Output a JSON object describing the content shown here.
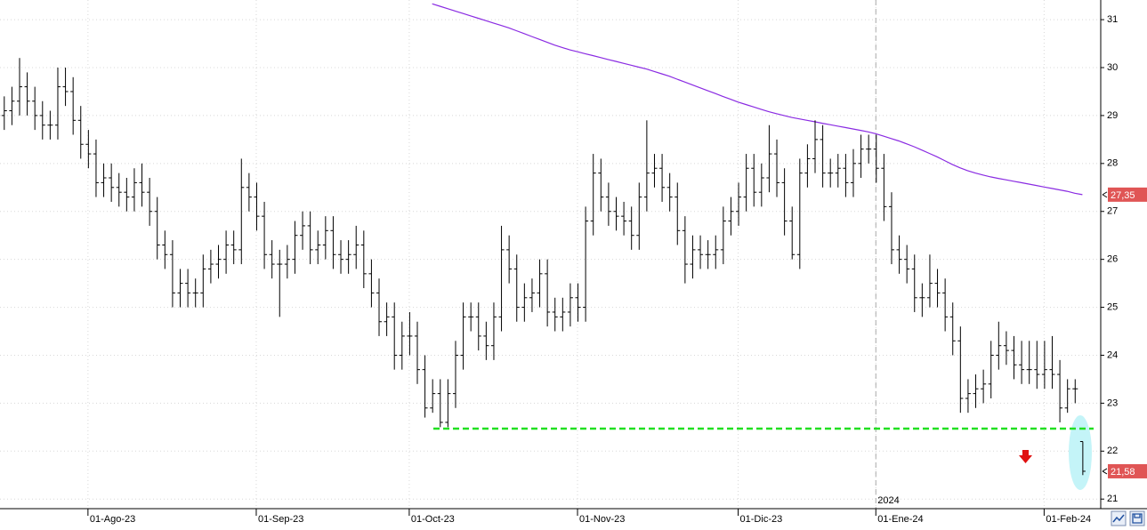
{
  "chart_data": {
    "type": "ohlc",
    "bar_color": "#000000",
    "grid": true,
    "xlim": [
      -0.5,
      143.4
    ],
    "ylim": [
      20.8,
      31.41
    ],
    "yticks": [
      21,
      22,
      23,
      24,
      25,
      26,
      27,
      28,
      29,
      30,
      31
    ],
    "xticks": [
      {
        "value": 11,
        "label": "01-Ago-23"
      },
      {
        "value": 33,
        "label": "01-Sep-23"
      },
      {
        "value": 53,
        "label": "01-Oct-23"
      },
      {
        "value": 75,
        "label": "01-Nov-23"
      },
      {
        "value": 96,
        "label": "01-Dic-23"
      },
      {
        "value": 114,
        "label": "01-Ene-24"
      },
      {
        "value": 136,
        "label": "01-Feb-24"
      }
    ],
    "year_marker": {
      "value": 114,
      "label": "2024"
    },
    "open": [
      29.0,
      29.1,
      29.3,
      29.6,
      29.3,
      29.0,
      28.8,
      28.8,
      29.6,
      29.5,
      28.9,
      28.4,
      28.2,
      27.6,
      27.7,
      27.5,
      27.4,
      27.3,
      27.6,
      27.4,
      27.0,
      26.3,
      26.1,
      25.3,
      25.5,
      25.3,
      25.3,
      25.8,
      25.9,
      26.0,
      26.3,
      26.2,
      27.5,
      27.3,
      26.9,
      26.1,
      25.9,
      25.9,
      26.0,
      26.5,
      26.7,
      26.2,
      26.3,
      26.6,
      26.1,
      26.0,
      26.1,
      26.3,
      25.7,
      25.3,
      24.7,
      24.8,
      24.0,
      24.4,
      24.4,
      23.7,
      22.9,
      23.2,
      22.6,
      23.2,
      24.0,
      24.8,
      24.8,
      24.4,
      24.2,
      24.8,
      26.2,
      25.8,
      25.0,
      25.2,
      25.3,
      25.7,
      24.9,
      24.8,
      24.9,
      25.2,
      25.0,
      26.8,
      27.8,
      27.3,
      27.0,
      26.9,
      26.8,
      26.5,
      27.3,
      27.8,
      27.9,
      27.5,
      27.3,
      26.6,
      25.9,
      26.2,
      26.1,
      26.1,
      26.2,
      26.8,
      27.0,
      27.3,
      27.9,
      27.4,
      27.7,
      28.2,
      27.6,
      26.8,
      26.1,
      27.8,
      28.1,
      28.5,
      27.8,
      27.8,
      27.9,
      27.6,
      28.0,
      28.3,
      28.3,
      27.9,
      27.1,
      26.2,
      26.0,
      25.8,
      25.2,
      25.2,
      25.5,
      25.3,
      24.8,
      24.3,
      23.1,
      23.2,
      23.3,
      23.4,
      24.0,
      24.2,
      24.1,
      23.8,
      23.7,
      23.7,
      23.6,
      23.7,
      23.6,
      22.9,
      23.3,
      22.2
    ],
    "high": [
      29.4,
      29.6,
      30.2,
      29.9,
      29.6,
      29.3,
      29.1,
      30.0,
      30.0,
      29.8,
      29.2,
      28.7,
      28.5,
      28.0,
      28.0,
      27.8,
      27.7,
      27.9,
      28.0,
      27.7,
      27.3,
      26.6,
      26.4,
      25.8,
      25.8,
      25.6,
      26.1,
      26.2,
      26.3,
      26.6,
      26.6,
      28.1,
      27.8,
      27.6,
      27.2,
      26.4,
      26.2,
      26.3,
      26.8,
      27.0,
      27.0,
      26.6,
      26.9,
      26.9,
      26.4,
      26.4,
      26.7,
      26.6,
      26.0,
      25.6,
      25.1,
      25.1,
      24.7,
      24.9,
      24.7,
      24.0,
      23.5,
      23.5,
      23.5,
      24.3,
      25.1,
      25.1,
      25.1,
      24.7,
      25.1,
      26.7,
      26.5,
      26.1,
      25.5,
      25.6,
      26.0,
      26.0,
      25.2,
      25.2,
      25.5,
      25.5,
      27.1,
      28.2,
      28.1,
      27.6,
      27.3,
      27.2,
      27.1,
      27.6,
      28.9,
      28.2,
      28.2,
      27.8,
      27.6,
      26.9,
      26.5,
      26.5,
      26.4,
      26.5,
      27.1,
      27.3,
      27.6,
      28.2,
      28.2,
      28.0,
      28.8,
      28.5,
      27.9,
      27.1,
      28.1,
      28.4,
      28.9,
      28.8,
      28.1,
      28.2,
      28.2,
      28.3,
      28.6,
      28.6,
      28.6,
      28.2,
      27.4,
      26.5,
      26.3,
      26.1,
      25.5,
      26.1,
      25.8,
      25.6,
      25.1,
      24.6,
      23.5,
      23.6,
      23.7,
      24.3,
      24.7,
      24.5,
      24.4,
      24.3,
      24.3,
      24.3,
      24.3,
      24.4,
      23.9,
      23.5,
      23.5,
      22.2
    ],
    "low": [
      28.7,
      28.8,
      29.0,
      29.0,
      28.7,
      28.5,
      28.5,
      28.5,
      29.2,
      28.6,
      28.1,
      27.9,
      27.3,
      27.3,
      27.2,
      27.1,
      27.0,
      27.0,
      27.1,
      26.7,
      26.0,
      25.8,
      25.0,
      25.0,
      25.0,
      25.0,
      25.0,
      25.5,
      25.6,
      25.7,
      25.9,
      25.9,
      27.0,
      26.6,
      25.8,
      25.6,
      24.8,
      25.6,
      25.7,
      26.2,
      25.9,
      25.9,
      26.0,
      25.8,
      25.7,
      25.7,
      25.8,
      25.4,
      25.0,
      24.4,
      24.4,
      23.7,
      23.7,
      24.0,
      23.4,
      22.7,
      22.8,
      22.5,
      22.5,
      22.9,
      23.7,
      24.5,
      24.1,
      23.9,
      23.9,
      24.5,
      25.5,
      24.7,
      24.7,
      24.9,
      25.0,
      24.6,
      24.5,
      24.5,
      24.6,
      24.7,
      24.7,
      26.5,
      27.0,
      26.7,
      26.6,
      26.5,
      26.2,
      26.2,
      27.0,
      27.5,
      27.2,
      27.0,
      26.3,
      25.5,
      25.6,
      25.8,
      25.8,
      25.8,
      25.9,
      26.5,
      26.7,
      27.0,
      27.1,
      27.1,
      27.4,
      27.3,
      26.5,
      26.0,
      25.8,
      27.5,
      27.8,
      27.5,
      27.5,
      27.5,
      27.3,
      27.3,
      27.7,
      28.0,
      27.6,
      26.8,
      25.9,
      25.7,
      25.5,
      24.9,
      24.8,
      25.0,
      25.0,
      24.5,
      24.0,
      22.8,
      22.8,
      22.9,
      23.0,
      23.1,
      23.7,
      23.8,
      23.5,
      23.4,
      23.4,
      23.3,
      23.3,
      23.3,
      22.6,
      22.8,
      23.0,
      21.5
    ],
    "close": [
      29.1,
      29.3,
      29.6,
      29.3,
      29.0,
      28.8,
      28.8,
      29.6,
      29.5,
      28.9,
      28.4,
      28.2,
      27.6,
      27.7,
      27.5,
      27.4,
      27.3,
      27.6,
      27.4,
      27.0,
      26.3,
      26.1,
      25.3,
      25.5,
      25.3,
      25.3,
      25.8,
      25.9,
      26.0,
      26.3,
      26.2,
      27.5,
      27.3,
      26.9,
      26.1,
      25.9,
      25.9,
      26.0,
      26.5,
      26.7,
      26.2,
      26.3,
      26.6,
      26.1,
      26.0,
      26.1,
      26.3,
      25.7,
      25.3,
      24.7,
      24.8,
      24.0,
      24.4,
      24.4,
      23.7,
      22.9,
      23.2,
      22.6,
      23.2,
      24.0,
      24.8,
      24.8,
      24.4,
      24.2,
      24.8,
      26.2,
      25.8,
      25.0,
      25.2,
      25.3,
      25.7,
      24.9,
      24.8,
      24.9,
      25.2,
      25.0,
      26.8,
      27.8,
      27.3,
      27.0,
      26.9,
      26.8,
      26.5,
      27.3,
      27.8,
      27.9,
      27.5,
      27.3,
      26.6,
      25.9,
      26.2,
      26.1,
      26.1,
      26.2,
      26.8,
      27.0,
      27.3,
      27.9,
      27.4,
      27.7,
      28.2,
      27.6,
      26.8,
      26.1,
      27.8,
      28.1,
      28.5,
      27.8,
      27.8,
      27.9,
      27.6,
      28.0,
      28.3,
      28.3,
      27.9,
      27.1,
      26.2,
      26.0,
      25.8,
      25.2,
      25.2,
      25.5,
      25.3,
      24.8,
      24.3,
      23.1,
      23.2,
      23.3,
      23.4,
      24.0,
      24.2,
      24.1,
      23.8,
      23.7,
      23.7,
      23.6,
      23.7,
      23.6,
      22.9,
      23.3,
      23.3,
      21.58
    ],
    "moving_average": {
      "color": "#8a2be2",
      "values": [
        null,
        null,
        null,
        null,
        null,
        null,
        null,
        null,
        null,
        null,
        null,
        null,
        null,
        null,
        null,
        null,
        null,
        null,
        null,
        null,
        null,
        null,
        null,
        null,
        null,
        null,
        null,
        null,
        null,
        null,
        null,
        null,
        null,
        null,
        null,
        null,
        null,
        null,
        null,
        null,
        null,
        null,
        null,
        null,
        null,
        null,
        null,
        null,
        null,
        null,
        null,
        null,
        null,
        null,
        null,
        null,
        31.33,
        31.28,
        31.23,
        31.18,
        31.13,
        31.08,
        31.03,
        30.98,
        30.93,
        30.88,
        30.83,
        30.77,
        30.71,
        30.65,
        30.59,
        30.53,
        30.47,
        30.42,
        30.37,
        30.33,
        30.29,
        30.25,
        30.21,
        30.17,
        30.13,
        30.09,
        30.05,
        30.01,
        29.97,
        29.92,
        29.87,
        29.82,
        29.76,
        29.7,
        29.64,
        29.58,
        29.52,
        29.46,
        29.4,
        29.34,
        29.28,
        29.23,
        29.18,
        29.13,
        29.08,
        29.04,
        29.0,
        28.96,
        28.93,
        28.9,
        28.87,
        28.84,
        28.81,
        28.78,
        28.75,
        28.72,
        28.69,
        28.66,
        28.62,
        28.57,
        28.52,
        28.47,
        28.41,
        28.35,
        28.28,
        28.21,
        28.14,
        28.06,
        27.98,
        27.91,
        27.85,
        27.8,
        27.76,
        27.72,
        27.69,
        27.66,
        27.63,
        27.6,
        27.57,
        27.54,
        27.51,
        27.48,
        27.45,
        27.42,
        27.38,
        27.35
      ]
    },
    "support": {
      "value": 22.47,
      "color": "#22e022"
    },
    "price_labels": [
      {
        "value": 27.35,
        "label": "27,35",
        "color": "#e05555"
      },
      {
        "value": 21.58,
        "label": "21,58",
        "color": "#e05555"
      }
    ]
  }
}
